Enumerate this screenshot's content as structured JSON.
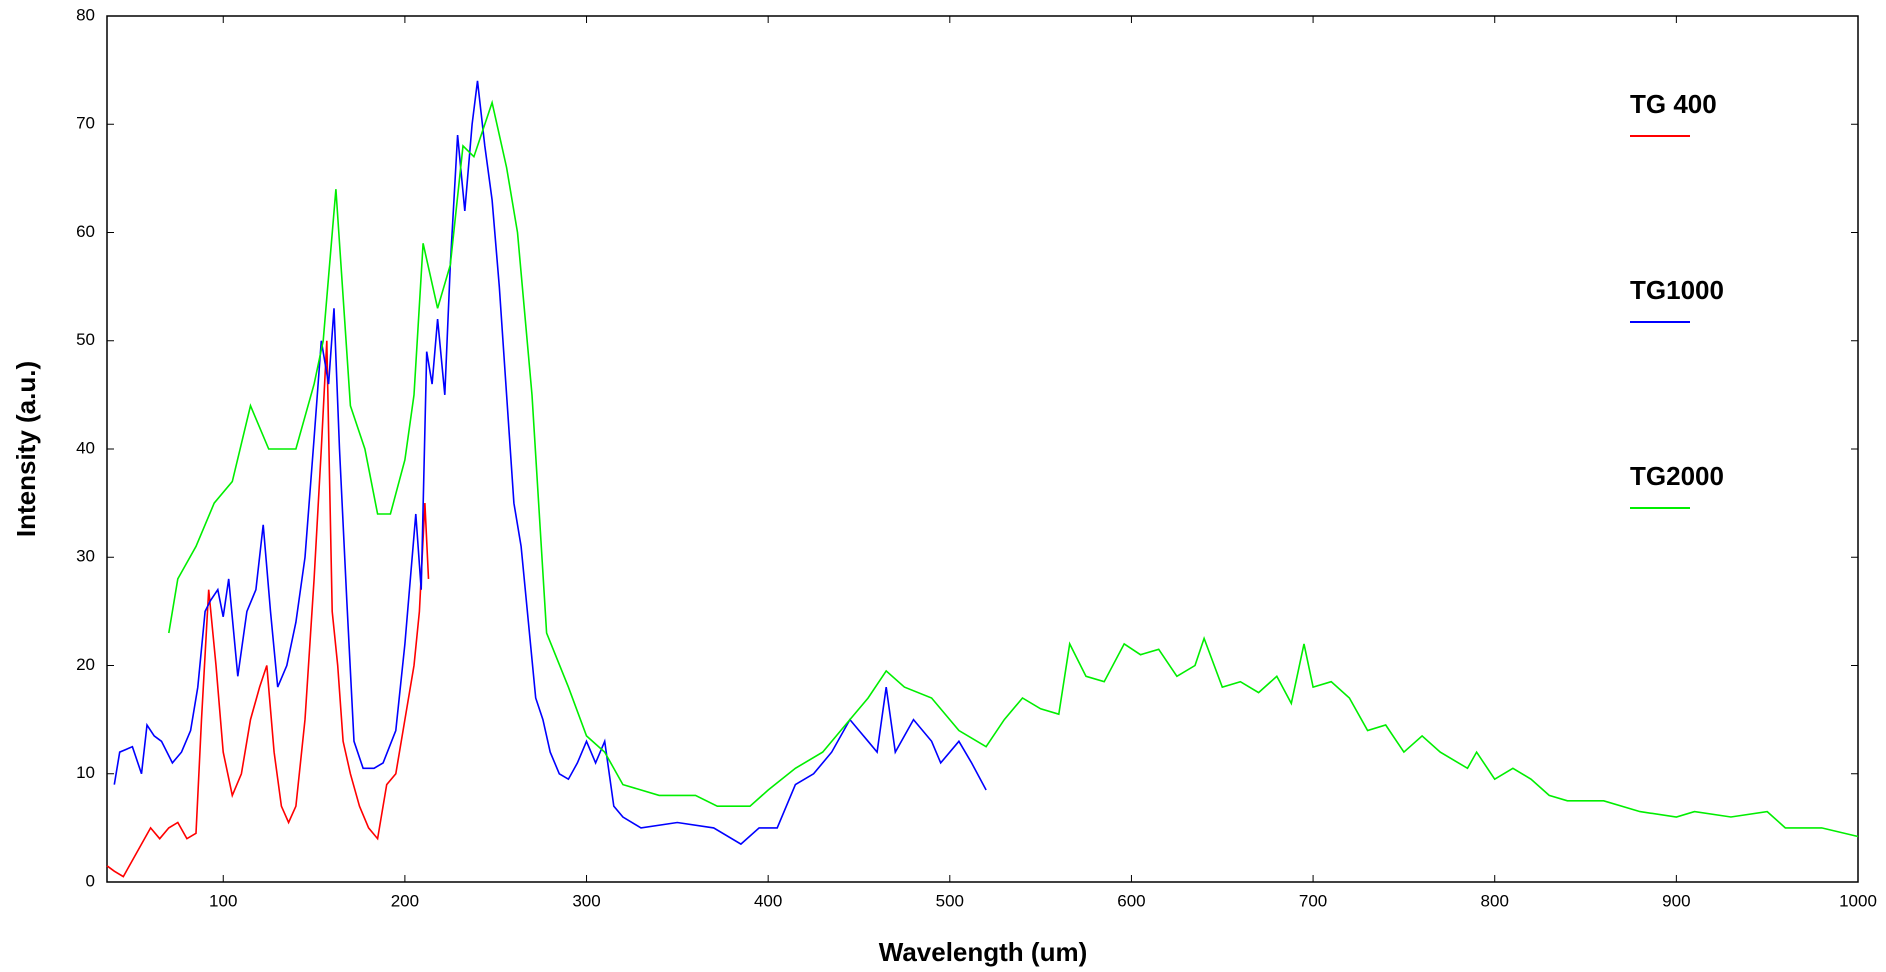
{
  "chart_data": {
    "type": "line",
    "x_label": "Wavelength (um)",
    "y_label": "Intensity (a.u.)",
    "xlim": [
      36,
      1000
    ],
    "ylim": [
      0,
      80
    ],
    "xticks": [
      100,
      200,
      300,
      400,
      500,
      600,
      700,
      800,
      900,
      1000
    ],
    "yticks": [
      0,
      10,
      20,
      30,
      40,
      50,
      60,
      70,
      80
    ],
    "grid": false,
    "legend": "right",
    "series": [
      {
        "name": "TG 400",
        "color": "#ff0000",
        "x": [
          36,
          40,
          45,
          50,
          55,
          60,
          65,
          70,
          75,
          80,
          85,
          88,
          92,
          96,
          100,
          105,
          110,
          115,
          120,
          124,
          128,
          132,
          136,
          140,
          145,
          150,
          154,
          157,
          160,
          163,
          166,
          170,
          175,
          180,
          185,
          190,
          195,
          200,
          205,
          208,
          211,
          213
        ],
        "values": [
          1.5,
          1,
          0.5,
          2,
          3.5,
          5,
          4,
          5,
          5.5,
          4,
          4.5,
          15,
          27,
          20,
          12,
          8,
          10,
          15,
          18,
          20,
          12,
          7,
          5.5,
          7,
          15,
          28,
          40,
          50,
          25,
          20,
          13,
          10,
          7,
          5,
          4,
          9,
          10,
          15,
          20,
          25,
          35,
          28
        ]
      },
      {
        "name": "TG1000",
        "color": "#0000ff",
        "x": [
          40,
          43,
          50,
          55,
          58,
          62,
          66,
          72,
          77,
          82,
          86,
          90,
          93,
          97,
          100,
          103,
          108,
          113,
          118,
          122,
          126,
          130,
          135,
          140,
          145,
          150,
          154,
          158,
          161,
          164,
          168,
          172,
          177,
          183,
          188,
          195,
          200,
          206,
          209,
          212,
          215,
          218,
          222,
          225,
          229,
          233,
          237,
          240,
          244,
          248,
          252,
          256,
          260,
          264,
          268,
          272,
          276,
          280,
          285,
          290,
          295,
          300,
          305,
          310,
          315,
          320,
          330,
          350,
          370,
          385,
          395,
          405,
          415,
          425,
          435,
          445,
          450,
          455,
          460,
          465,
          470,
          480,
          490,
          495,
          505,
          512,
          520
        ],
        "values": [
          9,
          12,
          12.5,
          10,
          14.5,
          13.5,
          13,
          11,
          12,
          14,
          18,
          25,
          26,
          27,
          24.5,
          28,
          19,
          25,
          27,
          33,
          25,
          18,
          20,
          24,
          30,
          41,
          50,
          46,
          53,
          40,
          26,
          13,
          10.5,
          10.5,
          11,
          14,
          22,
          34,
          27,
          49,
          46,
          52,
          45,
          57,
          69,
          62,
          70,
          74,
          68,
          63,
          55,
          45,
          35,
          31,
          24,
          17,
          15,
          12,
          10,
          9.5,
          11,
          13,
          11,
          13,
          7,
          6,
          5,
          5.5,
          5,
          3.5,
          5,
          5,
          9,
          10,
          12,
          15,
          14,
          13,
          12,
          18,
          12,
          15,
          13,
          11,
          13,
          11,
          8.5
        ]
      },
      {
        "name": "TG2000",
        "color": "#00ee00",
        "x": [
          70,
          75,
          85,
          95,
          105,
          115,
          125,
          135,
          140,
          150,
          155,
          162,
          170,
          178,
          185,
          192,
          200,
          205,
          210,
          218,
          225,
          232,
          238,
          248,
          256,
          262,
          270,
          278,
          290,
          300,
          310,
          320,
          340,
          360,
          372,
          390,
          400,
          415,
          430,
          445,
          455,
          465,
          475,
          490,
          505,
          520,
          530,
          540,
          550,
          560,
          566,
          575,
          585,
          596,
          605,
          615,
          625,
          635,
          640,
          650,
          660,
          670,
          680,
          688,
          695,
          700,
          710,
          720,
          730,
          740,
          750,
          760,
          770,
          785,
          790,
          800,
          810,
          820,
          830,
          840,
          850,
          860,
          880,
          900,
          910,
          930,
          950,
          960,
          980,
          1000
        ],
        "values": [
          23,
          28,
          31,
          35,
          37,
          44,
          40,
          40,
          40,
          46,
          50,
          64,
          44,
          40,
          34,
          34,
          39,
          45,
          59,
          53,
          57,
          68,
          67,
          72,
          66,
          60,
          45,
          23,
          18,
          13.5,
          12,
          9,
          8,
          8,
          7,
          7,
          8.5,
          10.5,
          12,
          15,
          17,
          19.5,
          18,
          17,
          14,
          12.5,
          15,
          17,
          16,
          15.5,
          22,
          19,
          18.5,
          22,
          21,
          21.5,
          19,
          20,
          22.5,
          18,
          18.5,
          17.5,
          19,
          16.5,
          22,
          18,
          18.5,
          17,
          14,
          14.5,
          12,
          13.5,
          12,
          10.5,
          12,
          9.5,
          10.5,
          9.5,
          8,
          7.5,
          7.5,
          7.5,
          6.5,
          6,
          6.5,
          6,
          6.5,
          5,
          5,
          4.2
        ]
      }
    ]
  }
}
